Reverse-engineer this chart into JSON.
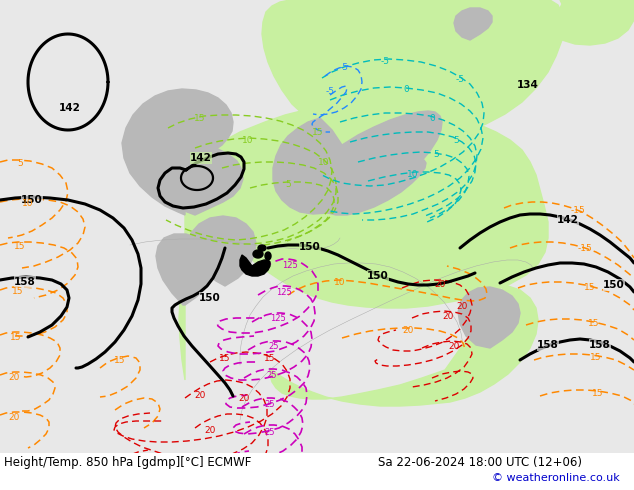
{
  "title_left": "Height/Temp. 850 hPa [gdmp][°C] ECMWF",
  "title_right": "Sa 22-06-2024 18:00 UTC (12+06)",
  "copyright": "© weatheronline.co.uk",
  "copyright_color": "#0000cc",
  "bg_color": "#ffffff",
  "map_bg": "#e8e8e8",
  "green_fill": "#c8f0a0",
  "gray_fill": "#b8b8b8",
  "title_fontsize": 8.5,
  "copyright_fontsize": 8,
  "black_lw": 2.0,
  "thin_lw": 0.9,
  "orange_color": "#ff8800",
  "red_color": "#dd0000",
  "magenta_color": "#cc00bb",
  "cyan_color": "#00bbbb",
  "ygreen_color": "#88cc22",
  "gray_line": "#aaaaaa"
}
